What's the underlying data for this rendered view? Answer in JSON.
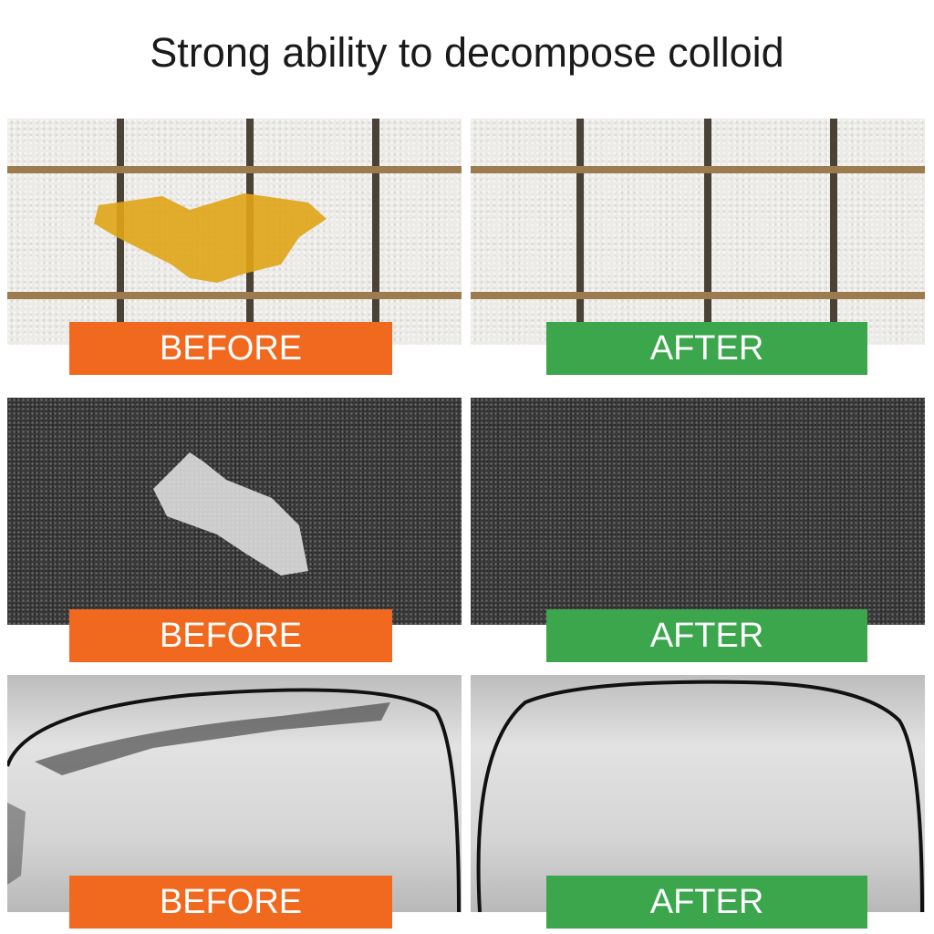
{
  "title": "Strong ability to decompose colloid",
  "colors": {
    "before": "#f0691f",
    "after": "#3ba64c"
  },
  "rows": [
    {
      "before_label": "BEFORE",
      "after_label": "AFTER",
      "surface": "tile"
    },
    {
      "before_label": "BEFORE",
      "after_label": "AFTER",
      "surface": "asphalt"
    },
    {
      "before_label": "BEFORE",
      "after_label": "AFTER",
      "surface": "car-paint"
    }
  ]
}
